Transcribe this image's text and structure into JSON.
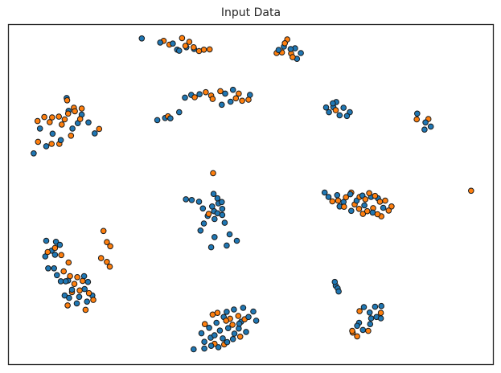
{
  "chart_data": {
    "type": "scatter",
    "title": "Input Data",
    "xlabel": "",
    "ylabel": "",
    "xlim": [
      0,
      100
    ],
    "ylim": [
      0,
      100
    ],
    "grid": false,
    "axis_ticks": false,
    "marker_edge_color": "#1a1a1a",
    "series": [
      {
        "color": "#1f77b4",
        "points": [
          [
            27.5,
            95.9
          ],
          [
            31.3,
            94.7
          ],
          [
            33.9,
            94.4
          ],
          [
            36.7,
            93.3
          ],
          [
            35.2,
            92.3
          ],
          [
            38.3,
            92.8
          ],
          [
            34.8,
            92.6
          ],
          [
            55.7,
            92.5
          ],
          [
            59.1,
            93.0
          ],
          [
            56.8,
            93.5
          ],
          [
            60.3,
            91.6
          ],
          [
            59.5,
            89.9
          ],
          [
            58.2,
            92.8
          ],
          [
            37.7,
            79.3
          ],
          [
            36.4,
            78.5
          ],
          [
            44.7,
            79.7
          ],
          [
            45.8,
            77.3
          ],
          [
            44.0,
            76.4
          ],
          [
            49.8,
            79.3
          ],
          [
            46.3,
            80.8
          ],
          [
            39.4,
            79.5
          ],
          [
            35.2,
            74.2
          ],
          [
            33.4,
            72.4
          ],
          [
            32.3,
            72.5
          ],
          [
            30.7,
            71.9
          ],
          [
            12.0,
            78.4
          ],
          [
            12.4,
            74.6
          ],
          [
            14.3,
            71.0
          ],
          [
            15.1,
            73.5
          ],
          [
            16.5,
            71.2
          ],
          [
            17.8,
            68.0
          ],
          [
            10.8,
            66.0
          ],
          [
            6.5,
            69.4
          ],
          [
            7.8,
            64.2
          ],
          [
            5.2,
            62.1
          ],
          [
            9.1,
            67.9
          ],
          [
            13.2,
            69.4
          ],
          [
            65.5,
            75.6
          ],
          [
            67.0,
            75.7
          ],
          [
            69.1,
            75.5
          ],
          [
            70.4,
            74.2
          ],
          [
            66.1,
            74.2
          ],
          [
            68.3,
            73.3
          ],
          [
            69.8,
            73.1
          ],
          [
            66.9,
            76.8
          ],
          [
            67.6,
            77.2
          ],
          [
            84.3,
            73.8
          ],
          [
            86.0,
            71.2
          ],
          [
            87.1,
            70.0
          ],
          [
            85.8,
            69.1
          ],
          [
            36.6,
            48.6
          ],
          [
            37.8,
            48.4
          ],
          [
            39.3,
            47.9
          ],
          [
            40.1,
            45.9
          ],
          [
            42.0,
            46.5
          ],
          [
            41.1,
            43.7
          ],
          [
            42.5,
            42.8
          ],
          [
            43.1,
            44.5
          ],
          [
            44.1,
            45.8
          ],
          [
            40.3,
            41.5
          ],
          [
            43.3,
            47.4
          ],
          [
            42.3,
            50.2
          ],
          [
            44.0,
            47.8
          ],
          [
            42.5,
            37.5
          ],
          [
            44.6,
            41.7
          ],
          [
            45.6,
            38.3
          ],
          [
            47.1,
            36.4
          ],
          [
            45.0,
            35.0
          ],
          [
            41.8,
            34.5
          ],
          [
            39.6,
            39.4
          ],
          [
            43.1,
            48.9
          ],
          [
            42.4,
            45.1
          ],
          [
            44.1,
            44.0
          ],
          [
            65.2,
            50.6
          ],
          [
            66.0,
            49.3
          ],
          [
            67.8,
            49.8
          ],
          [
            69.1,
            47.8
          ],
          [
            70.5,
            50.1
          ],
          [
            71.8,
            48.2
          ],
          [
            73.0,
            49.7
          ],
          [
            74.8,
            49.3
          ],
          [
            76.2,
            48.9
          ],
          [
            73.4,
            46.8
          ],
          [
            70.7,
            45.2
          ],
          [
            68.3,
            46.5
          ],
          [
            77.3,
            46.1
          ],
          [
            75.1,
            44.7
          ],
          [
            7.8,
            36.4
          ],
          [
            9.8,
            36.1
          ],
          [
            10.6,
            35.2
          ],
          [
            8.9,
            33.5
          ],
          [
            7.6,
            31.8
          ],
          [
            9.4,
            28.3
          ],
          [
            8.2,
            28.3
          ],
          [
            10.0,
            26.3
          ],
          [
            10.8,
            24.5
          ],
          [
            12.3,
            24.7
          ],
          [
            13.1,
            22.0
          ],
          [
            14.6,
            19.9
          ],
          [
            15.7,
            22.2
          ],
          [
            16.4,
            24.3
          ],
          [
            17.3,
            20.3
          ],
          [
            16.2,
            18.5
          ],
          [
            14.1,
            18.0
          ],
          [
            12.5,
            19.6
          ],
          [
            11.6,
            20.3
          ],
          [
            11.8,
            24.5
          ],
          [
            15.6,
            26.0
          ],
          [
            9.6,
            32.3
          ],
          [
            67.3,
            24.3
          ],
          [
            67.5,
            23.2
          ],
          [
            67.9,
            22.4
          ],
          [
            68.1,
            21.5
          ],
          [
            48.0,
            12.6
          ],
          [
            49.5,
            14.0
          ],
          [
            50.5,
            15.6
          ],
          [
            48.4,
            16.7
          ],
          [
            46.5,
            16.2
          ],
          [
            45.0,
            15.5
          ],
          [
            44.4,
            14.0
          ],
          [
            42.9,
            12.3
          ],
          [
            42.5,
            8.6
          ],
          [
            40.4,
            6.7
          ],
          [
            41.7,
            7.9
          ],
          [
            44.2,
            7.7
          ],
          [
            46.3,
            7.5
          ],
          [
            45.1,
            6.6
          ],
          [
            43.6,
            10.0
          ],
          [
            41.4,
            10.8
          ],
          [
            39.8,
            9.2
          ],
          [
            47.5,
            10.6
          ],
          [
            49.0,
            9.6
          ],
          [
            51.1,
            12.9
          ],
          [
            47.6,
            12.0
          ],
          [
            46.6,
            9.1
          ],
          [
            45.3,
            10.7
          ],
          [
            43.3,
            5.1
          ],
          [
            41.8,
            5.5
          ],
          [
            40.4,
            4.7
          ],
          [
            38.2,
            4.5
          ],
          [
            73.3,
            16.9
          ],
          [
            74.5,
            15.3
          ],
          [
            75.6,
            17.0
          ],
          [
            75.9,
            14.0
          ],
          [
            74.6,
            11.9
          ],
          [
            73.1,
            10.2
          ],
          [
            71.9,
            11.4
          ],
          [
            76.8,
            13.6
          ],
          [
            76.9,
            17.2
          ],
          [
            74.8,
            13.6
          ],
          [
            72.3,
            12.3
          ]
        ]
      },
      {
        "color": "#ff7f0e",
        "points": [
          [
            35.8,
            96.0
          ],
          [
            32.0,
            95.2
          ],
          [
            37.3,
            94.9
          ],
          [
            38.2,
            93.3
          ],
          [
            33.2,
            94.1
          ],
          [
            39.3,
            92.2
          ],
          [
            40.3,
            92.6
          ],
          [
            41.5,
            92.7
          ],
          [
            36.5,
            93.7
          ],
          [
            57.5,
            95.6
          ],
          [
            57.0,
            94.5
          ],
          [
            56.4,
            91.8
          ],
          [
            58.3,
            91.5
          ],
          [
            58.6,
            90.4
          ],
          [
            55.3,
            91.6
          ],
          [
            40.7,
            80.1
          ],
          [
            41.8,
            79.1
          ],
          [
            42.1,
            78.1
          ],
          [
            43.7,
            80.4
          ],
          [
            46.9,
            78.3
          ],
          [
            48.2,
            77.6
          ],
          [
            47.5,
            79.7
          ],
          [
            49.5,
            77.9
          ],
          [
            38.4,
            78.6
          ],
          [
            32.9,
            73.0
          ],
          [
            12.1,
            77.7
          ],
          [
            13.5,
            75.5
          ],
          [
            15.1,
            75.3
          ],
          [
            14.8,
            72.2
          ],
          [
            13.7,
            74.5
          ],
          [
            12.3,
            73.8
          ],
          [
            11.6,
            72.1
          ],
          [
            10.4,
            72.9
          ],
          [
            9.0,
            72.7
          ],
          [
            8.5,
            71.3
          ],
          [
            7.4,
            72.8
          ],
          [
            6.0,
            71.6
          ],
          [
            11.0,
            70.6
          ],
          [
            12.9,
            67.3
          ],
          [
            10.5,
            64.9
          ],
          [
            8.9,
            64.9
          ],
          [
            6.1,
            65.5
          ],
          [
            18.7,
            69.3
          ],
          [
            67.5,
            74.8
          ],
          [
            84.2,
            72.1
          ],
          [
            86.6,
            72.2
          ],
          [
            42.2,
            56.3
          ],
          [
            41.3,
            44.3
          ],
          [
            68.0,
            48.2
          ],
          [
            69.6,
            49.2
          ],
          [
            70.7,
            50.6
          ],
          [
            71.4,
            47.1
          ],
          [
            72.4,
            49.3
          ],
          [
            73.6,
            48.6
          ],
          [
            74.4,
            50.4
          ],
          [
            75.6,
            49.6
          ],
          [
            75.2,
            46.0
          ],
          [
            76.6,
            47.9
          ],
          [
            77.7,
            48.2
          ],
          [
            79.0,
            46.5
          ],
          [
            76.1,
            44.2
          ],
          [
            73.1,
            44.3
          ],
          [
            66.8,
            48.0
          ],
          [
            69.2,
            46.4
          ],
          [
            72.3,
            45.8
          ],
          [
            74.0,
            45.1
          ],
          [
            76.9,
            43.6
          ],
          [
            78.4,
            45.3
          ],
          [
            95.4,
            51.1
          ],
          [
            9.6,
            34.3
          ],
          [
            10.9,
            32.2
          ],
          [
            12.4,
            30.0
          ],
          [
            11.4,
            27.4
          ],
          [
            12.7,
            26.0
          ],
          [
            14.2,
            25.7
          ],
          [
            15.3,
            24.6
          ],
          [
            13.6,
            23.7
          ],
          [
            14.7,
            21.8
          ],
          [
            16.6,
            21.0
          ],
          [
            13.1,
            21.3
          ],
          [
            12.2,
            17.4
          ],
          [
            15.9,
            16.1
          ],
          [
            17.5,
            19.0
          ],
          [
            8.1,
            33.1
          ],
          [
            19.6,
            39.3
          ],
          [
            20.3,
            36.0
          ],
          [
            21.0,
            34.8
          ],
          [
            19.1,
            31.3
          ],
          [
            20.3,
            30.2
          ],
          [
            20.9,
            28.8
          ],
          [
            43.1,
            15.2
          ],
          [
            47.4,
            14.3
          ],
          [
            48.7,
            13.3
          ],
          [
            44.9,
            12.9
          ],
          [
            42.1,
            14.7
          ],
          [
            40.5,
            11.9
          ],
          [
            46.2,
            11.7
          ],
          [
            45.7,
            13.5
          ],
          [
            47.8,
            8.2
          ],
          [
            44.5,
            5.9
          ],
          [
            42.5,
            6.1
          ],
          [
            72.4,
            15.7
          ],
          [
            76.8,
            15.2
          ],
          [
            74.2,
            9.9
          ],
          [
            71.0,
            9.4
          ],
          [
            70.9,
            9.9
          ],
          [
            71.9,
            8.3
          ]
        ]
      }
    ]
  }
}
